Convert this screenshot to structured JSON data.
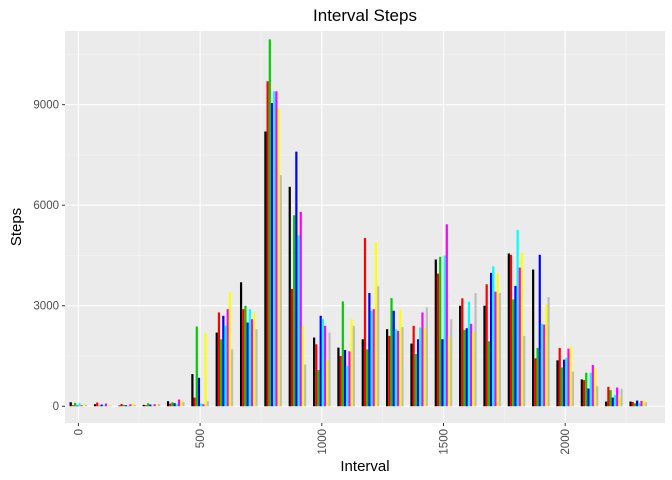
{
  "chart_data": {
    "type": "bar",
    "title": "Interval Steps",
    "xlabel": "Interval",
    "ylabel": "Steps",
    "xlim": [
      -55,
      2410
    ],
    "ylim": [
      -500,
      11200
    ],
    "xticks": [
      0,
      500,
      1000,
      1500,
      2000
    ],
    "yticks": [
      0,
      3000,
      6000,
      9000
    ],
    "x_tick_labels": [
      "0",
      "500",
      "1000",
      "1500",
      "2000"
    ],
    "y_tick_labels": [
      "0",
      "3000",
      "6000",
      "9000"
    ],
    "grid": true,
    "legend": "none",
    "colors": [
      "#000000",
      "#ff0000",
      "#00cd00",
      "#0000ff",
      "#00ffff",
      "#ff00ff",
      "#ffff00",
      "#bebebe"
    ],
    "x": [
      0,
      100,
      200,
      300,
      400,
      500,
      600,
      700,
      800,
      900,
      1000,
      1100,
      1200,
      1300,
      1400,
      1500,
      1600,
      1700,
      1800,
      1900,
      2000,
      2100,
      2200,
      2300
    ],
    "values": [
      [
        120,
        30,
        100,
        20,
        90,
        30,
        60,
        40
      ],
      [
        60,
        110,
        20,
        50,
        30,
        80,
        40,
        20
      ],
      [
        20,
        70,
        40,
        30,
        10,
        60,
        90,
        40
      ],
      [
        40,
        30,
        90,
        50,
        20,
        60,
        40,
        70
      ],
      [
        150,
        80,
        120,
        90,
        60,
        200,
        180,
        130
      ],
      [
        960,
        260,
        2380,
        850,
        80,
        60,
        2180,
        150
      ],
      [
        2200,
        2800,
        2000,
        2700,
        2400,
        2900,
        3400,
        1700
      ],
      [
        3700,
        2900,
        3000,
        2500,
        2900,
        2600,
        2800,
        2300
      ],
      [
        8200,
        9700,
        10950,
        9050,
        9400,
        9400,
        8900,
        6900
      ],
      [
        6550,
        3500,
        5700,
        7600,
        5100,
        5800,
        2400,
        1250
      ],
      [
        2050,
        1850,
        1080,
        2700,
        2600,
        2400,
        1400,
        2200
      ],
      [
        1750,
        1500,
        3130,
        1680,
        1200,
        1640,
        2600,
        2400
      ],
      [
        2000,
        5020,
        1700,
        3380,
        2850,
        2900,
        4900,
        3580
      ],
      [
        2300,
        2100,
        3230,
        2850,
        2300,
        2250,
        2880,
        2360
      ],
      [
        1870,
        2400,
        1560,
        2000,
        2350,
        2800,
        2350,
        2950
      ],
      [
        4380,
        3960,
        4460,
        2000,
        4500,
        5430,
        2080,
        2600
      ],
      [
        3000,
        3220,
        2280,
        2330,
        3120,
        2460,
        2230,
        3380
      ],
      [
        3000,
        3640,
        1940,
        3980,
        4180,
        3420,
        3980,
        3380
      ],
      [
        4560,
        4520,
        3190,
        3590,
        5260,
        4140,
        4570,
        2100
      ],
      [
        4080,
        1430,
        1740,
        4520,
        2460,
        2440,
        3030,
        3260
      ],
      [
        1370,
        1740,
        1160,
        1390,
        1450,
        1720,
        1780,
        1030
      ],
      [
        800,
        780,
        1000,
        530,
        1000,
        1230,
        1130,
        600
      ],
      [
        140,
        580,
        480,
        260,
        340,
        560,
        320,
        520
      ],
      [
        140,
        130,
        90,
        170,
        100,
        160,
        190,
        120
      ]
    ]
  }
}
